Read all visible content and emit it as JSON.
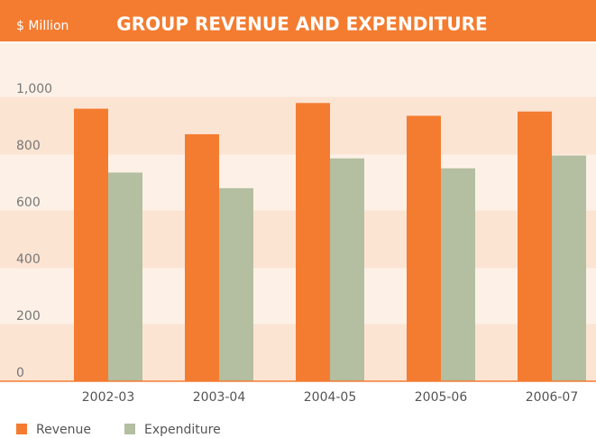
{
  "chart_data": {
    "type": "bar",
    "title": "GROUP REVENUE AND EXPENDITURE",
    "unit_label": "$ Million",
    "categories": [
      "2002-03",
      "2003-04",
      "2004-05",
      "2005-06",
      "2006-07"
    ],
    "series": [
      {
        "name": "Revenue",
        "color": "#f47c30",
        "values": [
          960,
          870,
          980,
          935,
          950
        ]
      },
      {
        "name": "Expenditure",
        "color": "#b4bea0",
        "values": [
          735,
          680,
          785,
          750,
          795
        ]
      }
    ],
    "ylim": [
      0,
      1000
    ],
    "yticks": [
      0,
      200,
      400,
      600,
      800,
      {
        "value": 1000,
        "label": "1,000"
      }
    ],
    "grid": true,
    "legend": "bottom-left"
  }
}
